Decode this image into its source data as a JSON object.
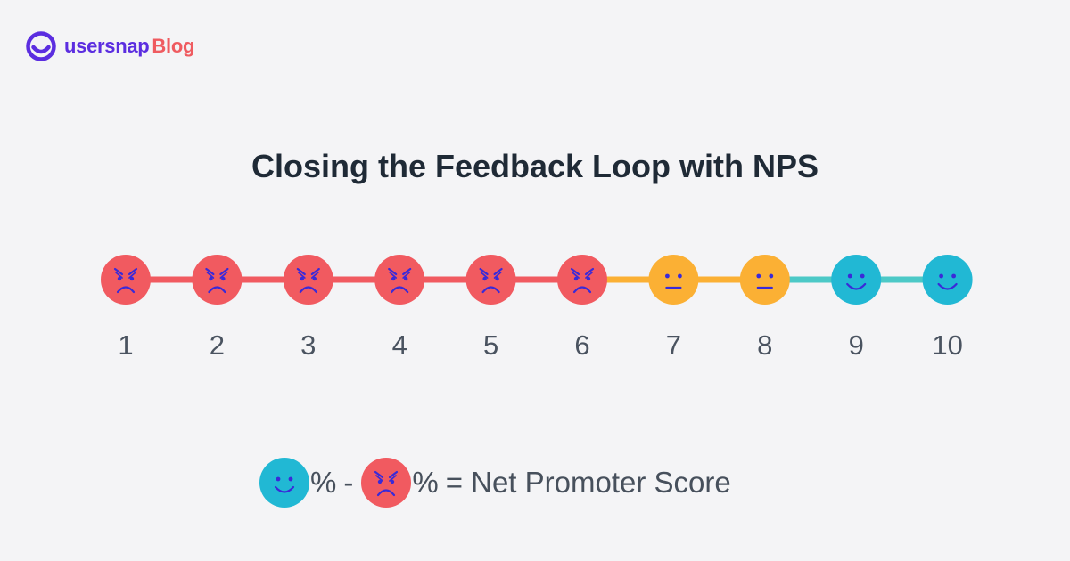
{
  "brand": {
    "name": "usersnap",
    "suffix": "Blog",
    "name_color": "#5b2de0",
    "suffix_color": "#ef5b60"
  },
  "title": "Closing the Feedback Loop with NPS",
  "scale": {
    "points": [
      {
        "label": "1",
        "mood": "detractor"
      },
      {
        "label": "2",
        "mood": "detractor"
      },
      {
        "label": "3",
        "mood": "detractor"
      },
      {
        "label": "4",
        "mood": "detractor"
      },
      {
        "label": "5",
        "mood": "detractor"
      },
      {
        "label": "6",
        "mood": "detractor"
      },
      {
        "label": "7",
        "mood": "passive"
      },
      {
        "label": "8",
        "mood": "passive"
      },
      {
        "label": "9",
        "mood": "promoter"
      },
      {
        "label": "10",
        "mood": "promoter"
      }
    ],
    "colors": {
      "detractor": "#f15a60",
      "passive": "#fbb034",
      "promoter": "#21b8d4",
      "promoter_line": "#4cc9c7",
      "face_feature": "#3a2ad8",
      "number": "#4a5360"
    }
  },
  "formula": {
    "promoter_pct": "%",
    "minus": "-",
    "detractor_pct": "%",
    "equals_label": "= Net Promoter Score"
  }
}
